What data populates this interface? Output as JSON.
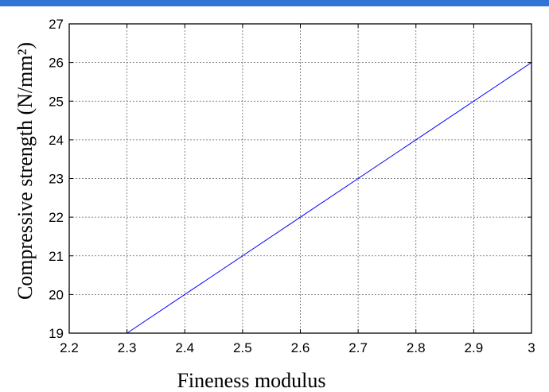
{
  "chart_data": {
    "type": "line",
    "xlabel": "Fineness modulus",
    "ylabel": "Compressive strength (N/mm²)",
    "xlim": [
      2.2,
      3.0
    ],
    "ylim": [
      19,
      27
    ],
    "xticks": [
      "2.2",
      "2.3",
      "2.4",
      "2.5",
      "2.6",
      "2.7",
      "2.8",
      "2.9",
      "3"
    ],
    "yticks": [
      "19",
      "20",
      "21",
      "22",
      "23",
      "24",
      "25",
      "26",
      "27"
    ],
    "grid": true,
    "series": [
      {
        "color": "#0000ff",
        "x": [
          2.3,
          3.0
        ],
        "y": [
          19,
          26
        ]
      }
    ]
  },
  "colors": {
    "accent_band": "#2e75d6",
    "line": "#0000ff",
    "grid": "#666666"
  }
}
